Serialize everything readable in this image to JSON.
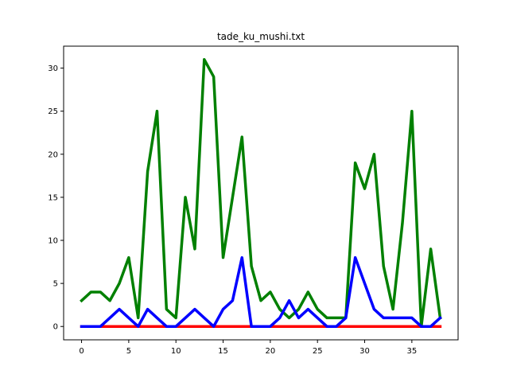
{
  "chart_data": {
    "type": "line",
    "title": "tade_ku_mushi.txt",
    "xlabel": "",
    "ylabel": "",
    "xlim": [
      -1.9,
      39.9
    ],
    "ylim": [
      -1.55,
      32.55
    ],
    "grid": false,
    "x_ticks": [
      0,
      5,
      10,
      15,
      20,
      25,
      30,
      35
    ],
    "y_ticks": [
      0,
      5,
      10,
      15,
      20,
      25,
      30
    ],
    "x": [
      0,
      1,
      2,
      3,
      4,
      5,
      6,
      7,
      8,
      9,
      10,
      11,
      12,
      13,
      14,
      15,
      16,
      17,
      18,
      19,
      20,
      21,
      22,
      23,
      24,
      25,
      26,
      27,
      28,
      29,
      30,
      31,
      32,
      33,
      34,
      35,
      36,
      37,
      38
    ],
    "series": [
      {
        "color": "#ff0000",
        "values": [
          0,
          0,
          0,
          0,
          0,
          0,
          0,
          0,
          0,
          0,
          0,
          0,
          0,
          0,
          0,
          0,
          0,
          0,
          0,
          0,
          0,
          0,
          0,
          0,
          0,
          0,
          0,
          0,
          0,
          0,
          0,
          0,
          0,
          0,
          0,
          0,
          0,
          0,
          0
        ]
      },
      {
        "color": "#008000",
        "values": [
          3,
          4,
          4,
          3,
          5,
          8,
          1,
          18,
          25,
          2,
          1,
          15,
          9,
          31,
          29,
          8,
          15,
          22,
          7,
          3,
          4,
          2,
          1,
          2,
          4,
          2,
          1,
          1,
          1,
          19,
          16,
          20,
          7,
          2,
          12,
          25,
          0,
          9,
          1
        ]
      },
      {
        "color": "#0000ff",
        "values": [
          0,
          0,
          0,
          1,
          2,
          1,
          0,
          2,
          1,
          0,
          0,
          1,
          2,
          1,
          0,
          2,
          3,
          8,
          0,
          0,
          0,
          1,
          3,
          1,
          2,
          1,
          0,
          0,
          1,
          8,
          5,
          2,
          1,
          1,
          1,
          1,
          0,
          0,
          1
        ]
      }
    ]
  }
}
